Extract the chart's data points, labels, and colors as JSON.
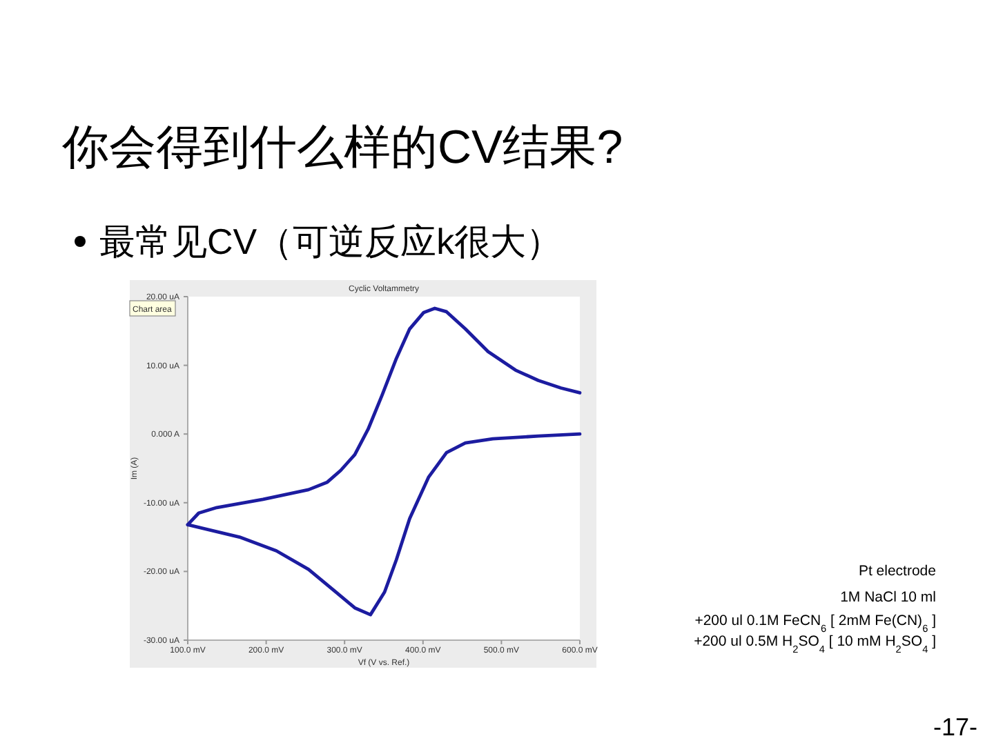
{
  "chart_data": {
    "type": "line",
    "title": "你会得到什么样的CV结果?",
    "subtitle": "最常见CV（可逆反应k很大）",
    "xlabel": "Vf (V vs. Ref.)",
    "ylabel": "Im (A)",
    "annotations": [
      "Cyclic Voltammetry",
      "Chart area",
      "Pt electrode",
      "1M NaCl 10 ml",
      "+200 ul 0.1M FeCN$_{6}$ [ 2mM Fe(CN)$_{6}$ ]",
      "+200 ul 0.5M H$_{2}$SO$_{4}$ [ 10 mM H$_{2}$SO$_{4}$ ]",
      "-17-"
    ],
    "xlim": [
      100,
      600
    ],
    "ylim": [
      -30,
      20
    ],
    "xticks": [
      {
        "value": 100,
        "label": "100.0 mV"
      },
      {
        "value": 200,
        "label": "200.0 mV"
      },
      {
        "value": 300,
        "label": "300.0 mV"
      },
      {
        "value": 400,
        "label": "400.0 mV"
      },
      {
        "value": 500,
        "label": "500.0 mV"
      },
      {
        "value": 600,
        "label": "600.0 mV"
      }
    ],
    "yticks": [
      {
        "value": 20,
        "label": "20.00 uA"
      },
      {
        "value": 10,
        "label": "10.00 uA"
      },
      {
        "value": 0,
        "label": "0.000 A"
      },
      {
        "value": -10,
        "label": "-10.00 uA"
      },
      {
        "value": -20,
        "label": "-20.00 uA"
      },
      {
        "value": -30,
        "label": "-30.00 uA"
      }
    ],
    "grid": false,
    "marker": "none",
    "line_style": "solid",
    "series": [
      {
        "color": "#1c1ca0",
        "x": [
          100,
          114,
          137,
          196,
          254,
          278,
          295,
          313,
          330,
          348,
          366,
          383,
          401,
          415,
          430,
          454,
          483,
          518,
          547,
          576,
          600
        ],
        "values": [
          -13.2,
          -11.5,
          -10.7,
          -9.5,
          -8.1,
          -7.0,
          -5.3,
          -3.0,
          0.7,
          5.7,
          11.0,
          15.3,
          17.7,
          18.3,
          17.8,
          15.3,
          12.0,
          9.3,
          7.8,
          6.7,
          6.0
        ]
      },
      {
        "color": "#1c1ca0",
        "x": [
          100,
          166,
          213,
          254,
          289,
          313,
          333,
          351,
          366,
          383,
          407,
          430,
          454,
          489,
          547,
          600
        ],
        "values": [
          -13.2,
          -15.0,
          -17.0,
          -19.7,
          -23.0,
          -25.3,
          -26.3,
          -23.0,
          -18.3,
          -12.3,
          -6.3,
          -2.7,
          -1.3,
          -0.7,
          -0.3,
          0.0
        ]
      }
    ]
  }
}
